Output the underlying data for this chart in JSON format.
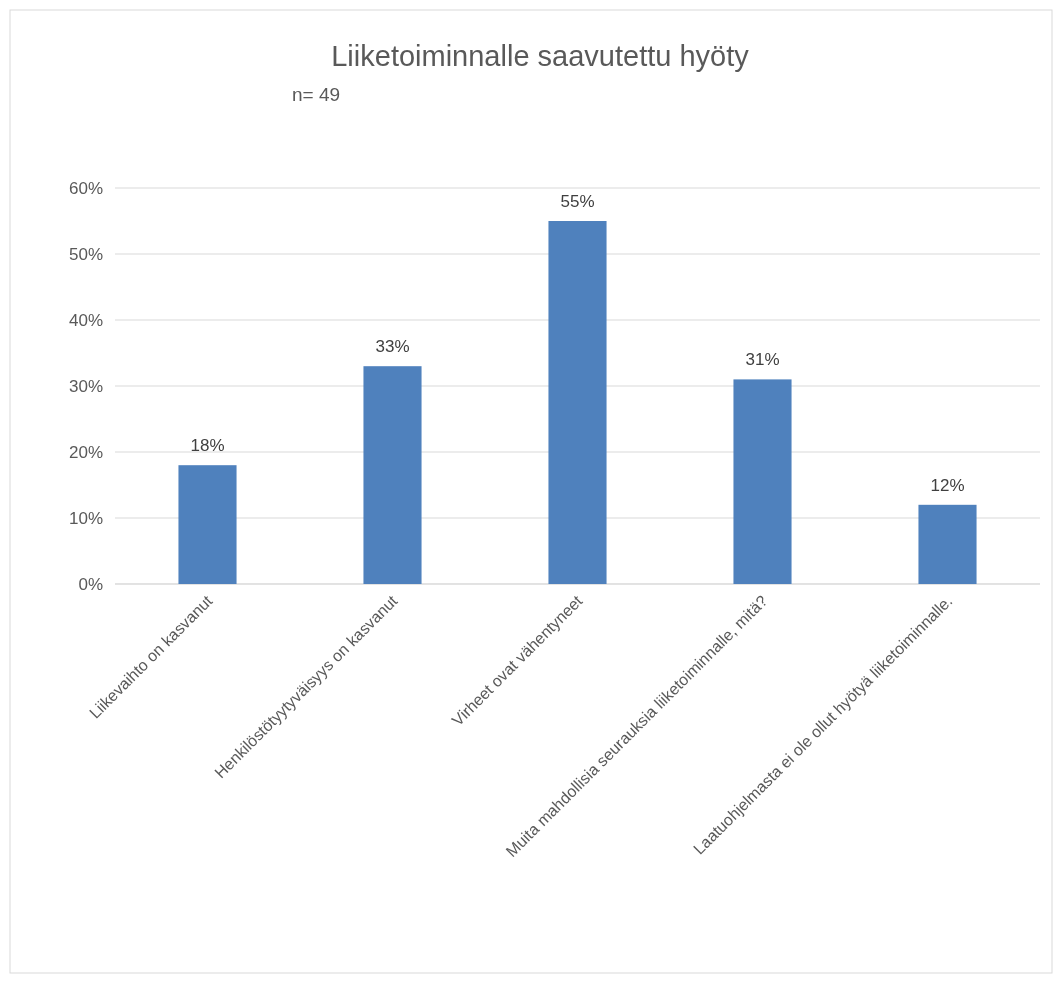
{
  "chart_data": {
    "type": "bar",
    "title": "Liiketoiminnalle saavutettu hyöty",
    "subtitle": "n= 49",
    "categories": [
      "Liikevaihto on kasvanut",
      "Henkilöstötyytyväisyys on kasvanut",
      "Virheet ovat vähentyneet",
      "Muita mahdollisia seurauksia liiketoiminnalle, mitä?",
      "Laatuohjelmasta ei ole ollut hyötyä liiketoiminnalle."
    ],
    "values": [
      18,
      33,
      55,
      31,
      12
    ],
    "value_labels": [
      "18%",
      "33%",
      "55%",
      "31%",
      "12%"
    ],
    "color": "#4f81bd",
    "ylim": [
      0,
      60
    ],
    "yticks": [
      {
        "value": 0,
        "label": "0%"
      },
      {
        "value": 10,
        "label": "10%"
      },
      {
        "value": 20,
        "label": "20%"
      },
      {
        "value": 30,
        "label": "30%"
      },
      {
        "value": 40,
        "label": "40%"
      },
      {
        "value": 50,
        "label": "50%"
      },
      {
        "value": 60,
        "label": "60%"
      }
    ],
    "grid": "y"
  }
}
